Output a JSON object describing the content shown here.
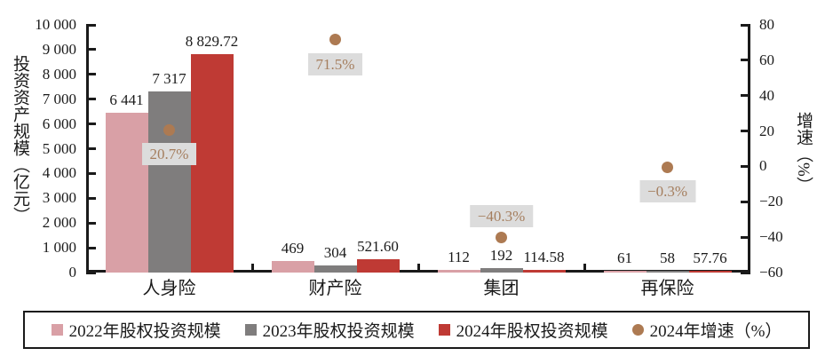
{
  "chart_data": {
    "type": "bar",
    "title": "",
    "categories": [
      "人身险",
      "财产险",
      "集团",
      "再保险"
    ],
    "series": [
      {
        "name": "2022年股权投资规模",
        "type": "bar",
        "axis": "left",
        "color": "#d9a0a6",
        "values": [
          6441,
          469,
          112,
          61
        ],
        "labels": [
          "6 441",
          "469",
          "112",
          "61"
        ]
      },
      {
        "name": "2023年股权投资规模",
        "type": "bar",
        "axis": "left",
        "color": "#7f7d7d",
        "values": [
          7317,
          304,
          192,
          58
        ],
        "labels": [
          "7 317",
          "304",
          "192",
          "58"
        ]
      },
      {
        "name": "2024年股权投资规模",
        "type": "bar",
        "axis": "left",
        "color": "#bf3a34",
        "values": [
          8829.72,
          521.6,
          114.58,
          57.76
        ],
        "labels": [
          "8 829.72",
          "521.60",
          "114.58",
          "57.76"
        ]
      },
      {
        "name": "2024年增速（%）",
        "type": "scatter",
        "axis": "right",
        "color": "#ad7a52",
        "values": [
          20.7,
          71.5,
          -40.3,
          -0.3
        ],
        "labels": [
          "20.7%",
          "71.5%",
          "−40.3%",
          "−0.3%"
        ],
        "label_positions": [
          "below",
          "below",
          "above",
          "below"
        ]
      }
    ],
    "left_axis": {
      "title": "投资资产规模（亿元）",
      "min": 0,
      "max": 10000,
      "step": 1000,
      "tick_labels": [
        "0",
        "1 000",
        "2 000",
        "3 000",
        "4 000",
        "5 000",
        "6 000",
        "7 000",
        "8 000",
        "9 000",
        "10 000"
      ]
    },
    "right_axis": {
      "title": "增速（%）",
      "min": -60,
      "max": 80,
      "step": 20,
      "tick_labels": [
        "−60",
        "−40",
        "−20",
        "0",
        "20",
        "40",
        "60",
        "80"
      ]
    },
    "legend_position": "bottom",
    "grid": false
  },
  "colors": {
    "bar_2022": "#d9a0a6",
    "bar_2023": "#7f7d7d",
    "bar_2024": "#bf3a34",
    "growth_dot": "#ad7a52",
    "growth_label_text": "#a57e5e",
    "growth_label_bg": "#dcdcdc",
    "axis": "#1a1a1a"
  }
}
